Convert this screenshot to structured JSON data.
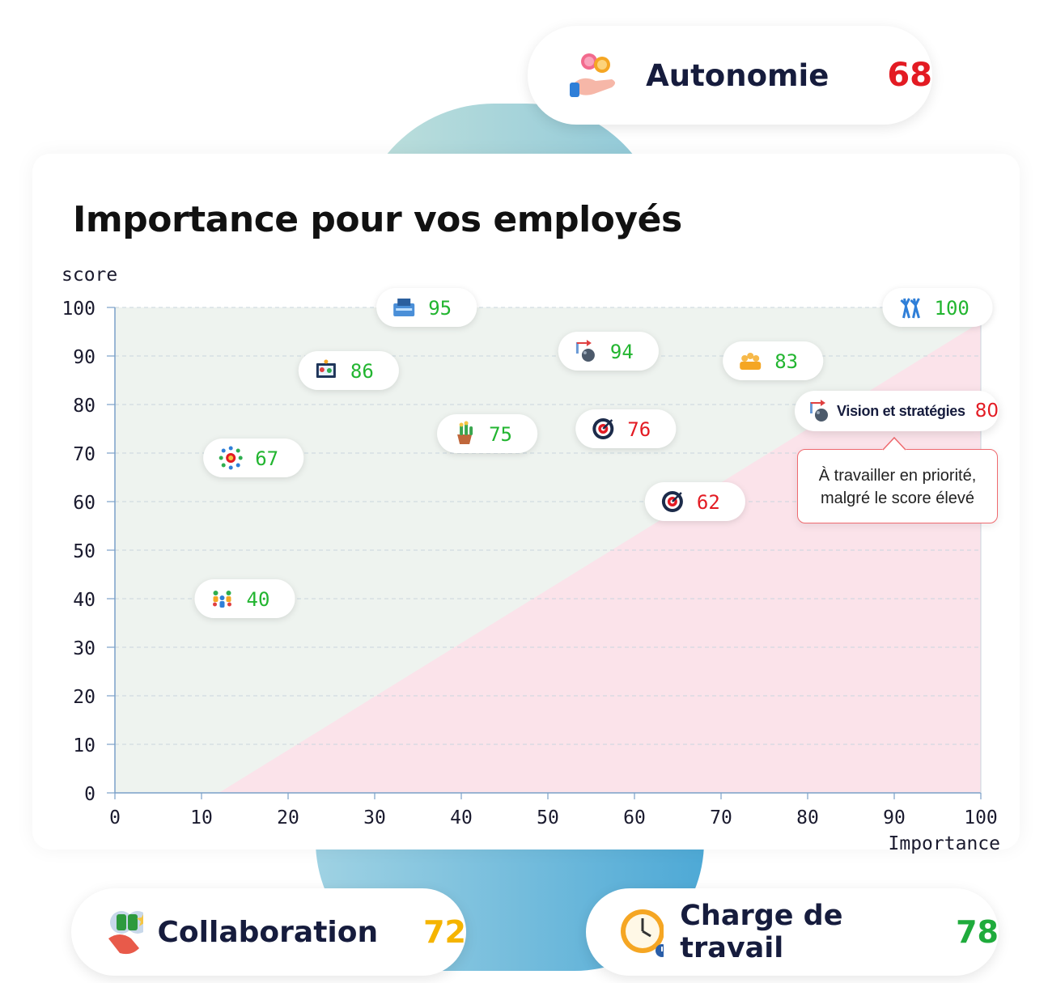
{
  "top_card": {
    "label": "Autonomie",
    "value": "68",
    "color": "#e31b23"
  },
  "bottom_left_card": {
    "label": "Collaboration",
    "value": "72",
    "color": "#f5b400"
  },
  "bottom_right_card": {
    "label": "Charge de travail",
    "value": "78",
    "color": "#1fab3c"
  },
  "callout": {
    "label": "Vision et stratégies",
    "value": "80",
    "text_line1": "À travailler en priorité,",
    "text_line2": "malgré le score élevé"
  },
  "chart_data": {
    "type": "scatter",
    "title": "Importance pour vos employés",
    "xlabel": "Importance",
    "ylabel": "score",
    "xlim": [
      0,
      100
    ],
    "ylim": [
      0,
      100
    ],
    "xticks": [
      0,
      10,
      20,
      30,
      40,
      50,
      60,
      70,
      80,
      90,
      100
    ],
    "yticks": [
      0,
      10,
      20,
      30,
      40,
      50,
      60,
      70,
      80,
      90,
      100
    ],
    "grid": true,
    "points": [
      {
        "x": 36,
        "y": 100,
        "value": "95",
        "status": "good",
        "icon": "workspace-icon"
      },
      {
        "x": 95,
        "y": 100,
        "value": "100",
        "status": "good",
        "icon": "team-cheer-icon"
      },
      {
        "x": 57,
        "y": 91,
        "value": "94",
        "status": "good",
        "icon": "strategy-icon"
      },
      {
        "x": 27,
        "y": 87,
        "value": "86",
        "status": "good",
        "icon": "presentation-icon"
      },
      {
        "x": 76,
        "y": 89,
        "value": "83",
        "status": "good",
        "icon": "crown-team-icon"
      },
      {
        "x": 43,
        "y": 74,
        "value": "75",
        "status": "good",
        "icon": "plant-icon"
      },
      {
        "x": 59,
        "y": 75,
        "value": "76",
        "status": "bad",
        "icon": "target-icon"
      },
      {
        "x": 16,
        "y": 69,
        "value": "67",
        "status": "good",
        "icon": "sun-network-icon"
      },
      {
        "x": 67,
        "y": 60,
        "value": "62",
        "status": "bad",
        "icon": "target-icon"
      },
      {
        "x": 15,
        "y": 40,
        "value": "40",
        "status": "good",
        "icon": "people-group-icon"
      },
      {
        "x": 84,
        "y": 79,
        "value": "80",
        "status": "bad",
        "icon": "strategy-icon"
      }
    ],
    "zones": {
      "good_color": "#eef3ef",
      "bad_color": "#fbe3ea",
      "diagonal": [
        [
          12,
          0
        ],
        [
          100,
          97
        ]
      ]
    },
    "colors": {
      "good": "#22b530",
      "bad": "#e31b23"
    }
  }
}
